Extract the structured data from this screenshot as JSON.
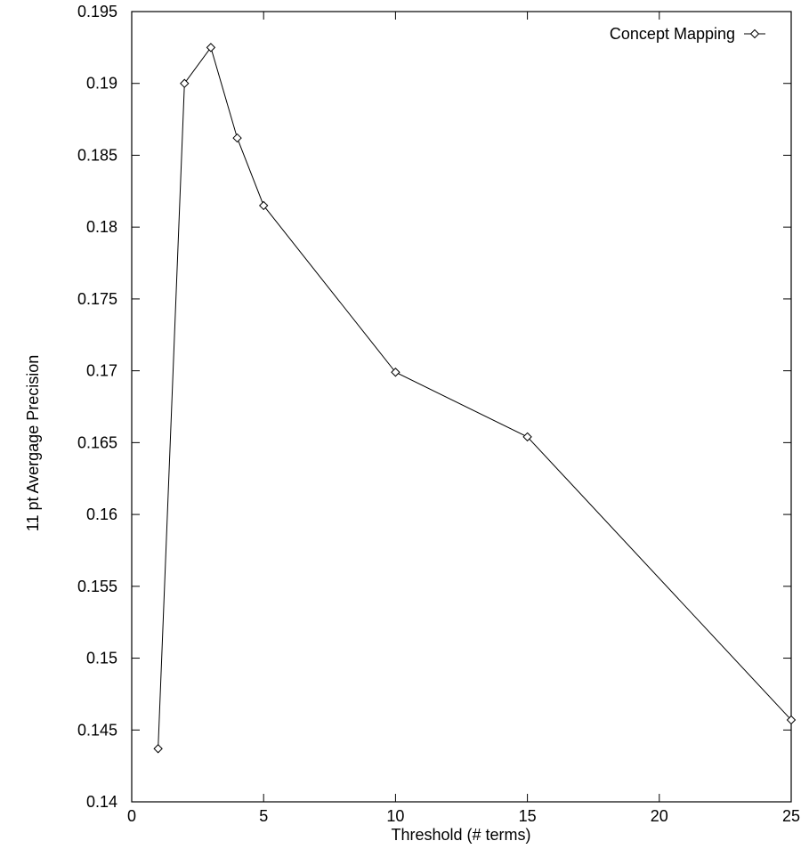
{
  "chart_data": {
    "type": "line",
    "title": "",
    "xlabel": "Threshold (# terms)",
    "ylabel": "11 pt Avergage Precision",
    "xlim": [
      0,
      25
    ],
    "ylim": [
      0.14,
      0.195
    ],
    "x_ticks": [
      "0",
      "5",
      "10",
      "15",
      "20",
      "25"
    ],
    "y_ticks": [
      "0.14",
      "0.145",
      "0.15",
      "0.155",
      "0.16",
      "0.165",
      "0.17",
      "0.175",
      "0.18",
      "0.185",
      "0.19",
      "0.195"
    ],
    "grid": false,
    "legend_position": "top-right",
    "series": [
      {
        "name": "Concept Mapping",
        "marker": "diamond",
        "color": "#000000",
        "x": [
          1,
          2,
          3,
          4,
          5,
          10,
          15,
          25
        ],
        "y": [
          0.1437,
          0.19,
          0.1925,
          0.1862,
          0.1815,
          0.1699,
          0.1654,
          0.1457
        ]
      }
    ]
  }
}
